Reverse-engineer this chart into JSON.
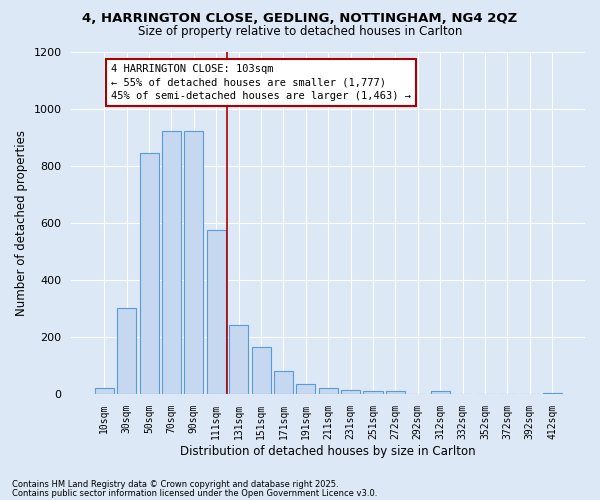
{
  "title1": "4, HARRINGTON CLOSE, GEDLING, NOTTINGHAM, NG4 2QZ",
  "title2": "Size of property relative to detached houses in Carlton",
  "xlabel": "Distribution of detached houses by size in Carlton",
  "ylabel": "Number of detached properties",
  "bar_color": "#c5d8f0",
  "bar_edge_color": "#5b9bd5",
  "background_color": "#dce8f5",
  "grid_color": "#ffffff",
  "categories": [
    "10sqm",
    "30sqm",
    "50sqm",
    "70sqm",
    "90sqm",
    "111sqm",
    "131sqm",
    "151sqm",
    "171sqm",
    "191sqm",
    "211sqm",
    "231sqm",
    "251sqm",
    "272sqm",
    "292sqm",
    "312sqm",
    "332sqm",
    "352sqm",
    "372sqm",
    "392sqm",
    "412sqm"
  ],
  "values": [
    20,
    300,
    845,
    920,
    920,
    575,
    240,
    165,
    80,
    35,
    20,
    15,
    12,
    10,
    0,
    10,
    0,
    0,
    0,
    0,
    5
  ],
  "ylim": [
    0,
    1200
  ],
  "yticks": [
    0,
    200,
    400,
    600,
    800,
    1000,
    1200
  ],
  "annotation_text": "4 HARRINGTON CLOSE: 103sqm\n← 55% of detached houses are smaller (1,777)\n45% of semi-detached houses are larger (1,463) →",
  "annotation_box_color": "#ffffff",
  "annotation_box_edge": "#aa0000",
  "vline_color": "#aa0000",
  "vline_x_index": 5.5,
  "footnote1": "Contains HM Land Registry data © Crown copyright and database right 2025.",
  "footnote2": "Contains public sector information licensed under the Open Government Licence v3.0."
}
